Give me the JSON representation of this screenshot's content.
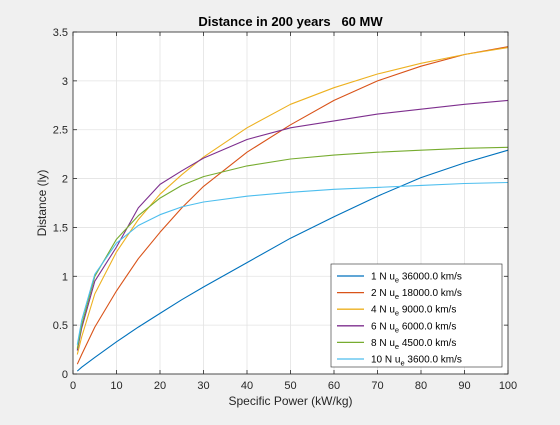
{
  "chart_data": {
    "type": "line",
    "title": "Distance in 200 years   60 MW",
    "xlabel": "Specific Power (kW/kg)",
    "ylabel": "Distance (ly)",
    "xlim": [
      0,
      100
    ],
    "ylim": [
      0,
      3.5
    ],
    "xticks": [
      0,
      10,
      20,
      30,
      40,
      50,
      60,
      70,
      80,
      90,
      100
    ],
    "yticks": [
      0,
      0.5,
      1,
      1.5,
      2,
      2.5,
      3,
      3.5
    ],
    "xtick_labels": [
      "0",
      "10",
      "20",
      "30",
      "40",
      "50",
      "60",
      "70",
      "80",
      "90",
      "100"
    ],
    "ytick_labels": [
      "0",
      "0.5",
      "1",
      "1.5",
      "2",
      "2.5",
      "3",
      "3.5"
    ],
    "grid": true,
    "legend_position": "bottom-right",
    "x": [
      1,
      2,
      5,
      10,
      15,
      20,
      25,
      30,
      40,
      50,
      60,
      70,
      80,
      90,
      100
    ],
    "series": [
      {
        "label_prefix": "1 N u",
        "label_sub": "e",
        "label_suffix": " 36000.0 km/s",
        "color": "#0072BD",
        "values": [
          0.03,
          0.07,
          0.17,
          0.33,
          0.48,
          0.62,
          0.76,
          0.89,
          1.14,
          1.39,
          1.61,
          1.82,
          2.01,
          2.16,
          2.29
        ]
      },
      {
        "label_prefix": "2 N u",
        "label_sub": "e",
        "label_suffix": " 18000.0 km/s",
        "color": "#D95319",
        "values": [
          0.1,
          0.2,
          0.48,
          0.85,
          1.18,
          1.45,
          1.7,
          1.92,
          2.27,
          2.55,
          2.8,
          3.0,
          3.15,
          3.27,
          3.35
        ]
      },
      {
        "label_prefix": "4 N u",
        "label_sub": "e",
        "label_suffix": " 9000.0 km/s",
        "color": "#EDB120",
        "values": [
          0.2,
          0.38,
          0.82,
          1.25,
          1.58,
          1.84,
          2.04,
          2.22,
          2.52,
          2.76,
          2.93,
          3.07,
          3.18,
          3.27,
          3.34
        ]
      },
      {
        "label_prefix": "6 N u",
        "label_sub": "e",
        "label_suffix": " 6000.0 km/s",
        "color": "#7E2F8E",
        "values": [
          0.24,
          0.47,
          0.95,
          1.3,
          1.7,
          1.94,
          2.08,
          2.21,
          2.4,
          2.52,
          2.59,
          2.66,
          2.71,
          2.76,
          2.8
        ]
      },
      {
        "label_prefix": "8 N u",
        "label_sub": "e",
        "label_suffix": " 4500.0 km/s",
        "color": "#77AC30",
        "values": [
          0.26,
          0.5,
          1.0,
          1.38,
          1.62,
          1.8,
          1.93,
          2.02,
          2.13,
          2.2,
          2.24,
          2.27,
          2.29,
          2.31,
          2.32
        ]
      },
      {
        "label_prefix": "10 N u",
        "label_sub": "e",
        "label_suffix": " 3600.0 km/s",
        "color": "#4DBEEE",
        "values": [
          0.3,
          0.55,
          1.02,
          1.34,
          1.52,
          1.63,
          1.71,
          1.76,
          1.82,
          1.86,
          1.89,
          1.91,
          1.93,
          1.95,
          1.96
        ]
      }
    ]
  }
}
